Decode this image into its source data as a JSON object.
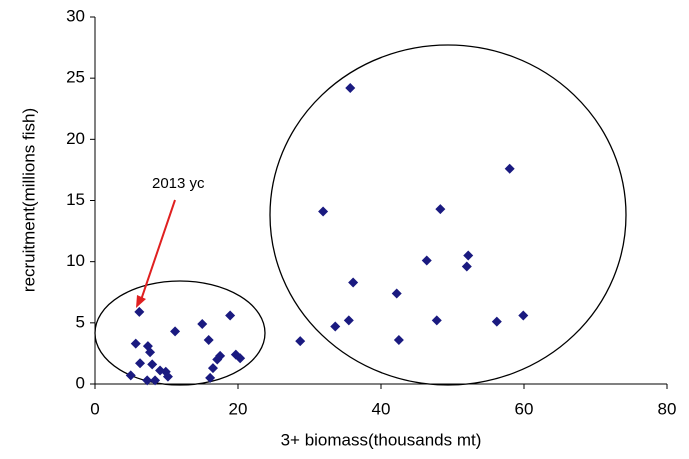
{
  "chart_data": {
    "type": "scatter",
    "x_label": "3+ biomass(thousands mt)",
    "y_label": "recruitment(millions fish)",
    "annotation": "2013 yc",
    "xlim": [
      0,
      80
    ],
    "xticks": [
      0,
      20,
      40,
      60,
      80
    ],
    "ylim": [
      0,
      30
    ],
    "yticks": [
      0,
      5,
      10,
      15,
      20,
      25,
      30
    ],
    "grid": false,
    "color": "#1a1a80",
    "x": [
      35.7,
      58.0,
      31.9,
      48.3,
      52.2,
      52.0,
      46.4,
      36.1,
      42.2,
      59.9,
      56.2,
      47.8,
      35.5,
      33.6,
      42.5,
      28.7,
      6.2,
      11.2,
      15.0,
      18.9,
      15.9,
      5.7,
      7.4,
      7.7,
      19.7,
      20.3,
      17.5,
      17.1,
      16.5,
      16.1,
      6.3,
      8.0,
      9.1,
      9.9,
      10.2,
      7.3,
      8.4,
      5.0
    ],
    "y": [
      24.2,
      17.6,
      14.1,
      14.3,
      10.5,
      9.6,
      10.1,
      8.3,
      7.4,
      5.6,
      5.1,
      5.2,
      5.2,
      4.7,
      3.6,
      3.5,
      5.9,
      4.3,
      4.9,
      5.6,
      3.6,
      3.3,
      3.1,
      2.6,
      2.4,
      2.1,
      2.3,
      2.0,
      1.3,
      0.5,
      1.7,
      1.6,
      1.1,
      1.0,
      0.6,
      0.3,
      0.3,
      0.7
    ]
  }
}
